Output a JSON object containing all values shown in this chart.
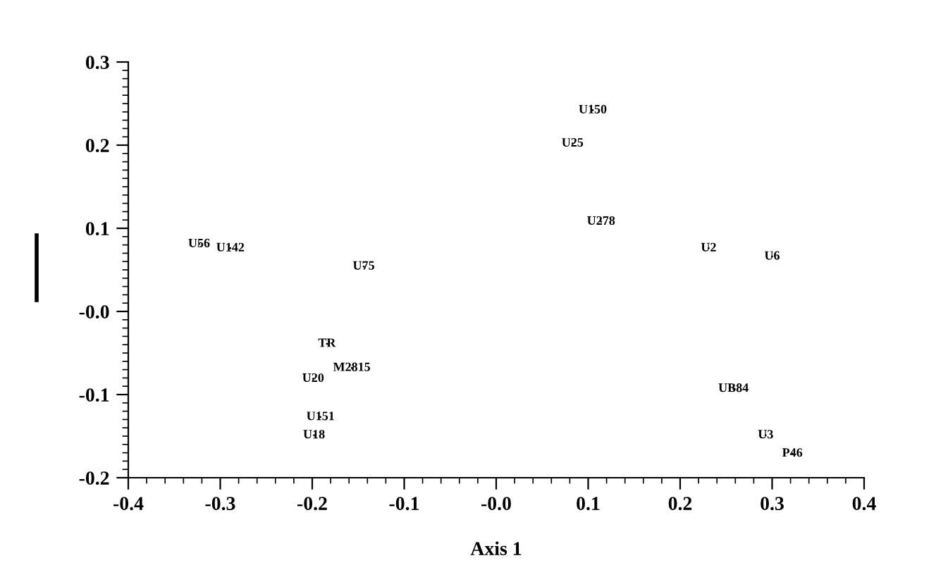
{
  "chart_data": {
    "type": "scatter",
    "xlabel": "Axis 1",
    "marker": "none",
    "grid": false,
    "legend": false,
    "x": [
      -0.323,
      -0.289,
      -0.144,
      0.105,
      0.083,
      0.114,
      0.231,
      0.3,
      -0.184,
      -0.157,
      -0.199,
      -0.191,
      -0.198,
      0.258,
      0.293,
      0.322
    ],
    "values": [
      0.081,
      0.076,
      0.054,
      0.242,
      0.202,
      0.108,
      0.076,
      0.066,
      -0.039,
      -0.068,
      -0.081,
      -0.127,
      -0.149,
      -0.093,
      -0.149,
      -0.171
    ],
    "value_labels": [
      "U56",
      "U142",
      "U75",
      "U150",
      "U25",
      "U278",
      "U2",
      "U6",
      "TR",
      "M2815",
      "U20",
      "U151",
      "U18",
      "UB84",
      "U3",
      "P46"
    ],
    "color": "#000000",
    "xlim": [
      -0.4,
      0.4
    ],
    "ylim": [
      -0.2,
      0.3
    ],
    "xticks": [
      -0.4,
      -0.3,
      -0.2,
      -0.1,
      {
        "value": 0,
        "label": "-0.0"
      },
      0.1,
      0.2,
      0.3,
      0.4
    ],
    "yticks": [
      -0.2,
      -0.1,
      {
        "value": 0,
        "label": "-0.0"
      },
      0.1,
      0.2,
      0.3
    ]
  }
}
